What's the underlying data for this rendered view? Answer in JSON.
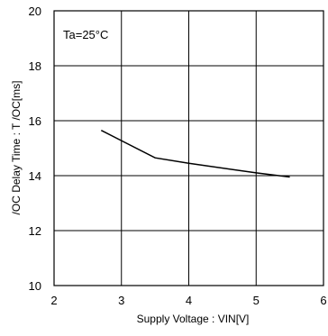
{
  "chart_data": {
    "type": "line",
    "title": "",
    "xlabel": "Supply Voltage : VIN[V]",
    "ylabel": "/OC Delay Time : T /OC[ms]",
    "xlim": [
      2,
      6
    ],
    "ylim": [
      10,
      20
    ],
    "xticks": [
      2,
      3,
      4,
      5,
      6
    ],
    "yticks": [
      10,
      12,
      14,
      16,
      18,
      20
    ],
    "xtick_labels": [
      "2",
      "3",
      "4",
      "5",
      "6"
    ],
    "ytick_labels": [
      "10",
      "12",
      "14",
      "16",
      "18",
      "20"
    ],
    "grid": true,
    "annotation": "Ta=25°C",
    "series": [
      {
        "x": [
          2.7,
          3.5,
          4.0,
          5.0,
          5.5
        ],
        "y": [
          15.65,
          14.65,
          14.45,
          14.1,
          13.95
        ]
      }
    ]
  }
}
